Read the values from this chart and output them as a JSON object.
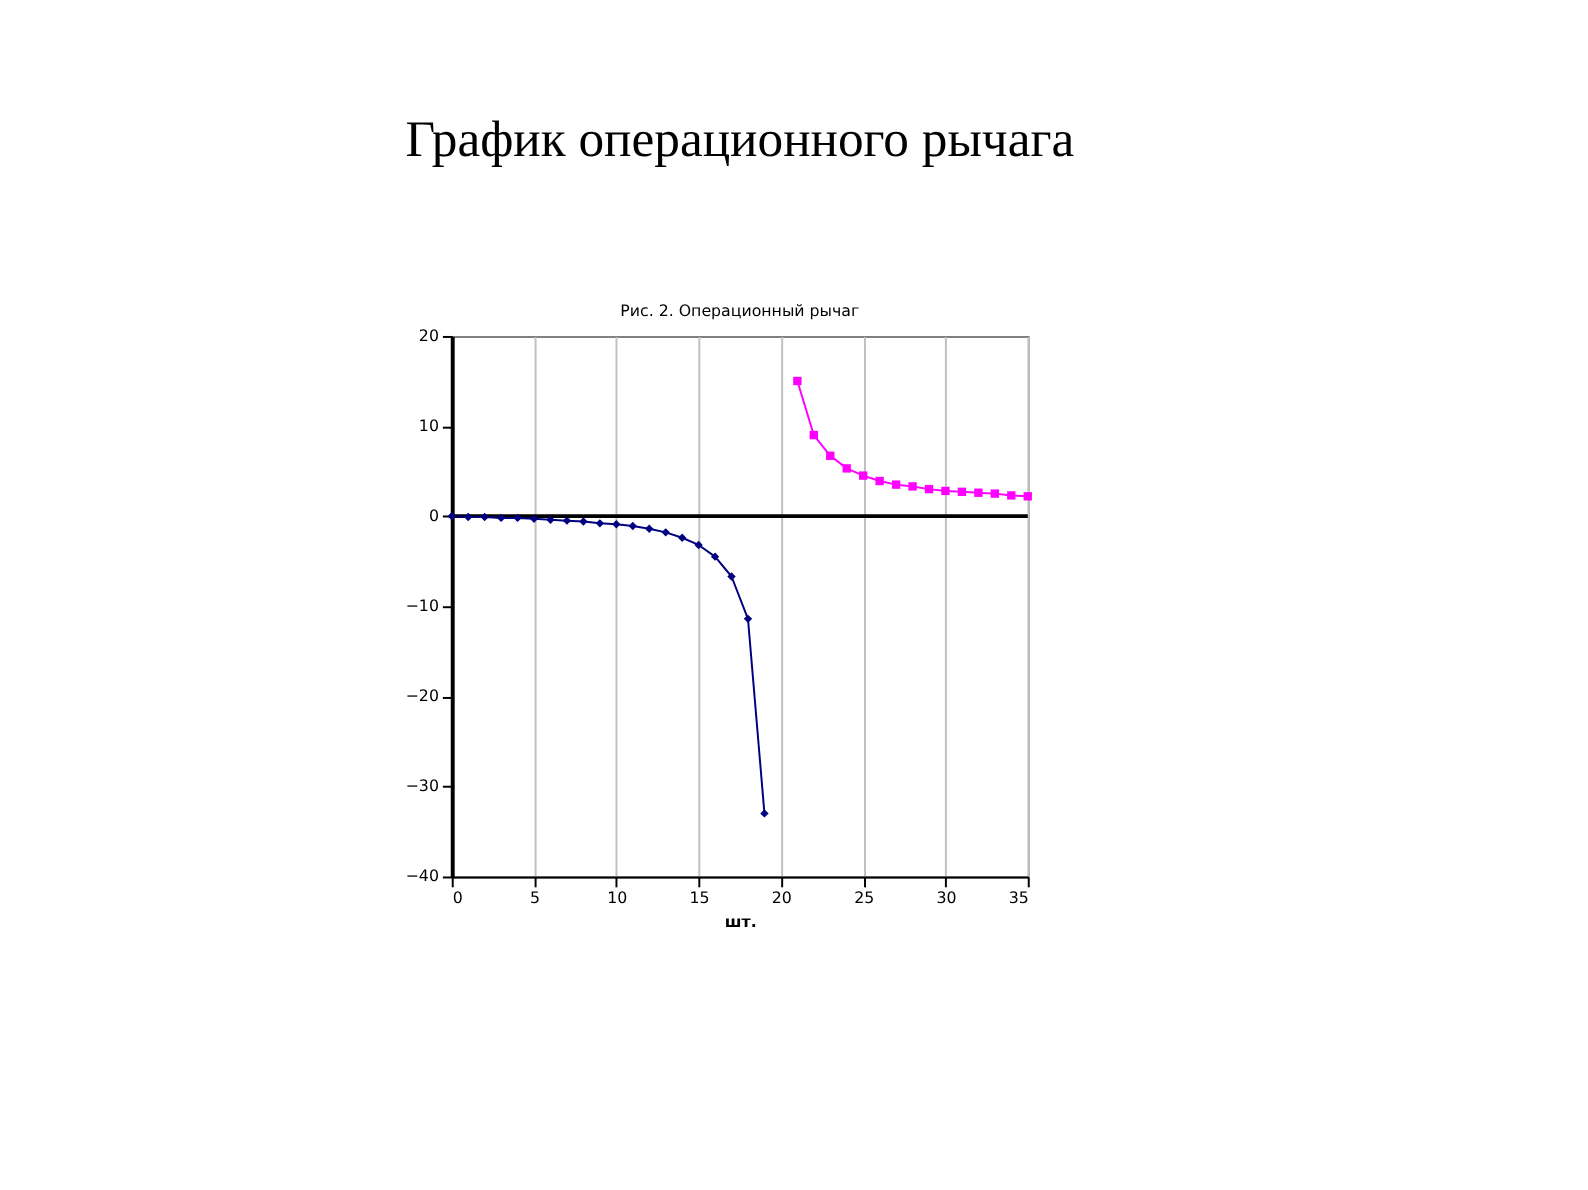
{
  "chart_data": {
    "type": "line",
    "title": "График операционного рычага",
    "subtitle": "Рис. 2. Операционный рычаг",
    "xlabel": "шт.",
    "series": [
      {
        "color": "#000080",
        "marker": "diamond",
        "x": [
          0,
          1,
          2,
          3,
          4,
          5,
          6,
          7,
          8,
          9,
          10,
          11,
          12,
          13,
          14,
          15,
          16,
          17,
          18,
          19
        ],
        "values": [
          0,
          -0.1,
          -0.1,
          -0.2,
          -0.2,
          -0.3,
          -0.4,
          -0.5,
          -0.6,
          -0.8,
          -0.9,
          -1.1,
          -1.4,
          -1.8,
          -2.4,
          -3.2,
          -4.5,
          -6.7,
          -11.4,
          -33
        ]
      },
      {
        "color": "#ff00ff",
        "marker": "square",
        "x": [
          21,
          22,
          23,
          24,
          25,
          26,
          27,
          28,
          29,
          30,
          31,
          32,
          33,
          34,
          35
        ],
        "values": [
          15,
          9,
          6.7,
          5.3,
          4.5,
          3.9,
          3.5,
          3.3,
          3.0,
          2.8,
          2.7,
          2.6,
          2.5,
          2.3,
          2.2
        ]
      }
    ],
    "xlim": [
      0,
      35
    ],
    "xticks": [
      0,
      5,
      10,
      15,
      20,
      25,
      30,
      35
    ],
    "ylim": [
      -40,
      20
    ],
    "yticks": [
      -40,
      -30,
      -20,
      -10,
      0,
      10,
      20
    ],
    "grid": "x"
  }
}
